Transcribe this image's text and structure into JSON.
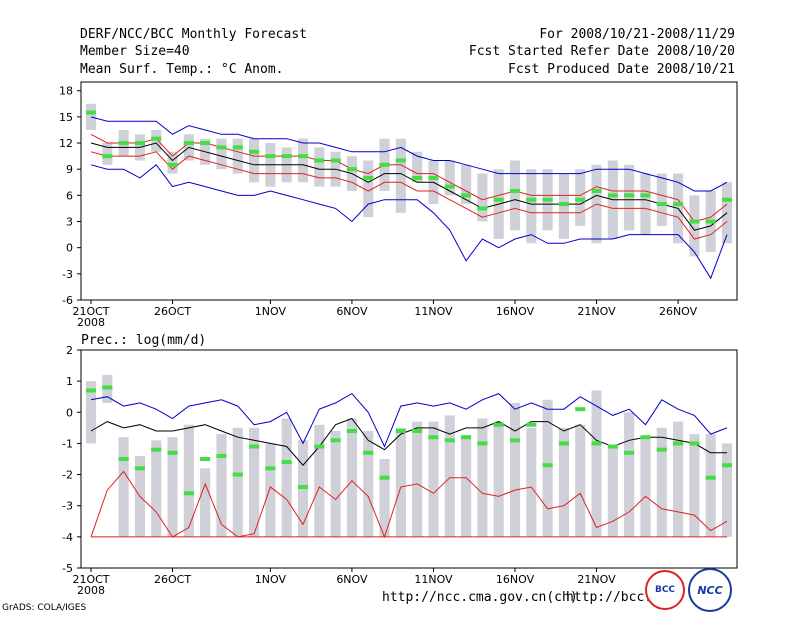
{
  "header": {
    "title": "DERF/NCC/BCC Monthly Forecast",
    "member": "Member Size=40",
    "variable": "Mean Surf. Temp.: °C Anom.",
    "period": "For 2008/10/21-2008/11/29",
    "started": "Fcst Started Refer Date 2008/10/20",
    "produced": "Fcst Produced Date 2008/10/21"
  },
  "footer": {
    "url1": "http://ncc.cma.gov.cn(ch)",
    "url2": "http://bcc.",
    "credit": "GrADS: COLA/IGES",
    "logo1": "BCC",
    "logo2": "NCC"
  },
  "colors": {
    "bar": "#d0d0d8",
    "median": "#44dd44",
    "mean": "#000000",
    "inner": "#dd2222",
    "outer": "#0000cc",
    "axis": "#000000"
  },
  "chart_data": [
    {
      "type": "box-plume",
      "title": "Mean Surf. Temp.: °C Anom.",
      "ylim": [
        -6,
        19
      ],
      "yticks": [
        -6,
        -3,
        0,
        3,
        6,
        9,
        12,
        15,
        18
      ],
      "xticks": [
        {
          "day": 1,
          "label": "21OCT"
        },
        {
          "day": 6,
          "label": "26OCT"
        },
        {
          "day": 12,
          "label": "1NOV"
        },
        {
          "day": 17,
          "label": "6NOV"
        },
        {
          "day": 22,
          "label": "11NOV"
        },
        {
          "day": 27,
          "label": "16NOV"
        },
        {
          "day": 32,
          "label": "21NOV"
        },
        {
          "day": 37,
          "label": "26NOV"
        }
      ],
      "year_label": "2008",
      "bar_low": [
        13.5,
        9.5,
        10.5,
        10,
        11,
        8.5,
        10,
        9.5,
        9,
        8.5,
        7.5,
        7,
        7.5,
        7.5,
        7,
        7,
        6.5,
        3.5,
        6.5,
        4,
        7.5,
        5,
        6,
        5,
        3,
        1,
        2,
        0.5,
        2,
        1,
        2.5,
        0.5,
        1,
        2,
        1.5,
        2.5,
        0.5,
        -1,
        -0.5,
        0.5
      ],
      "bar_high": [
        16.5,
        12,
        13.5,
        13,
        13.5,
        11,
        13,
        12.5,
        12.5,
        12.5,
        12.5,
        12,
        11.5,
        12.5,
        11.5,
        11,
        10.5,
        10,
        12.5,
        12.5,
        11,
        10,
        10,
        9.5,
        8.5,
        9,
        10,
        9,
        9,
        8.5,
        9,
        9.5,
        10,
        9.5,
        8.5,
        8.5,
        8.5,
        6,
        6.5,
        7.5
      ],
      "median": [
        15.5,
        10.5,
        12,
        12,
        12.5,
        9.5,
        12,
        12,
        11.5,
        11.5,
        11,
        10.5,
        10.5,
        10.5,
        10,
        10,
        9,
        8,
        9.5,
        10,
        8,
        8,
        7,
        6,
        4.5,
        5.5,
        6.5,
        5.5,
        5.5,
        5,
        5.5,
        6.5,
        6,
        6,
        6,
        5,
        5,
        3,
        3,
        5.5
      ],
      "mean": [
        12,
        11.5,
        11.5,
        11.5,
        12,
        10,
        11.5,
        11,
        10.5,
        10,
        9.5,
        9.5,
        9.5,
        9.5,
        9,
        9,
        8.5,
        7.5,
        8.5,
        8.5,
        7.5,
        7.5,
        6.5,
        5.5,
        4.5,
        5,
        5.5,
        5,
        5,
        5,
        5,
        6,
        5.5,
        5.5,
        5.5,
        5,
        4.5,
        2,
        2.5,
        4
      ],
      "inner_upper": [
        13,
        12,
        12,
        12,
        12.5,
        10.5,
        12,
        12,
        11.5,
        11,
        10.5,
        10.5,
        10.5,
        10.5,
        10,
        10,
        9,
        8.5,
        9.5,
        9.5,
        8.5,
        8.5,
        7.5,
        6.5,
        5.5,
        6,
        6.5,
        6,
        6,
        6,
        6,
        7,
        6.5,
        6.5,
        6.5,
        6,
        5.5,
        3,
        3.5,
        5
      ],
      "inner_lower": [
        11,
        10.5,
        10.5,
        10.5,
        11,
        9,
        10.5,
        10,
        9.5,
        9,
        8.5,
        8.5,
        8.5,
        8.5,
        8,
        8,
        7.5,
        6.5,
        7.5,
        7.5,
        6.5,
        6.5,
        5.5,
        4.5,
        3.5,
        4,
        4.5,
        4,
        4,
        4,
        4,
        5,
        4.5,
        4.5,
        4.5,
        4,
        3.5,
        1,
        1.5,
        3
      ],
      "outer_upper": [
        15,
        14.5,
        14.5,
        14.5,
        14.5,
        13,
        14,
        13.5,
        13,
        13,
        12.5,
        12.5,
        12.5,
        12,
        12,
        11.5,
        11,
        11,
        11,
        11.5,
        10.5,
        10,
        10,
        9.5,
        9,
        8.5,
        8.5,
        8.5,
        8.5,
        8.5,
        8.5,
        9,
        9,
        9,
        8.5,
        8,
        7.5,
        6.5,
        6.5,
        7.5
      ],
      "outer_lower": [
        9.5,
        9,
        9,
        8,
        9.5,
        7,
        7.5,
        7,
        6.5,
        6,
        6,
        6.5,
        6,
        5.5,
        5,
        4.5,
        3,
        5,
        5.5,
        5.5,
        5.5,
        4,
        2,
        -1.5,
        1,
        0,
        1,
        1.5,
        0.5,
        0.5,
        1,
        1,
        1,
        1.5,
        1.5,
        1.5,
        1.5,
        -0.5,
        -3.5,
        1.5
      ]
    },
    {
      "type": "box-plume",
      "title": "Prec.: log(mm/d)",
      "ylim": [
        -5,
        2
      ],
      "yticks": [
        -5,
        -4,
        -3,
        -2,
        -1,
        0,
        1,
        2
      ],
      "xticks": [
        {
          "day": 1,
          "label": "21OCT"
        },
        {
          "day": 6,
          "label": "26OCT"
        },
        {
          "day": 12,
          "label": "1NOV"
        },
        {
          "day": 17,
          "label": "6NOV"
        },
        {
          "day": 22,
          "label": "11NOV"
        },
        {
          "day": 27,
          "label": "16NOV"
        },
        {
          "day": 32,
          "label": "21NOV"
        }
      ],
      "year_label": "2008",
      "baseline": -4,
      "bar_low": [
        -1,
        0.3,
        -4,
        -4,
        -4,
        -4,
        -4,
        -4,
        -4,
        -4,
        -4,
        -4,
        -4,
        -4,
        -4,
        -4,
        -4,
        -4,
        -4,
        -4,
        -4,
        -4,
        -4,
        -4,
        -4,
        -4,
        -4,
        -4,
        -4,
        -4,
        -4,
        -4,
        -4,
        -4,
        -4,
        -4,
        -4,
        -4,
        -4,
        -4
      ],
      "bar_high": [
        1,
        1.2,
        -0.8,
        -1.4,
        -0.9,
        -0.8,
        -0.4,
        -1.8,
        -0.7,
        -0.5,
        -0.5,
        -1,
        -0.2,
        -0.9,
        -0.4,
        -0.6,
        -0.2,
        -0.6,
        -1.5,
        -0.5,
        -0.3,
        -0.3,
        -0.1,
        -0.8,
        -0.2,
        -0.3,
        0.3,
        -0.5,
        0.4,
        -0.5,
        -0.4,
        0.7,
        -1.1,
        0,
        -0.8,
        -0.5,
        -0.3,
        -0.7,
        -0.7,
        -1
      ],
      "median": [
        0.7,
        0.8,
        -1.5,
        -1.8,
        -1.2,
        -1.3,
        -2.6,
        -1.5,
        -1.4,
        -2,
        -1.1,
        -1.8,
        -1.6,
        -2.4,
        -1.1,
        -0.9,
        -0.6,
        -1.3,
        -2.1,
        -0.6,
        -0.6,
        -0.8,
        -0.9,
        -0.8,
        -1,
        -0.4,
        -0.9,
        -0.4,
        -1.7,
        -1,
        0.1,
        -1,
        -1.1,
        -1.3,
        -0.8,
        -1.2,
        -1,
        -1,
        -2.1,
        -1.7
      ],
      "mean": [
        -0.6,
        -0.3,
        -0.5,
        -0.4,
        -0.6,
        -0.6,
        -0.5,
        -0.4,
        -0.6,
        -0.8,
        -0.9,
        -1,
        -1.1,
        -1.7,
        -1.1,
        -0.4,
        -0.2,
        -0.9,
        -1.2,
        -0.7,
        -0.5,
        -0.5,
        -0.7,
        -0.5,
        -0.5,
        -0.3,
        -0.6,
        -0.3,
        -0.3,
        -0.6,
        -0.4,
        -0.9,
        -1.1,
        -0.9,
        -0.8,
        -0.8,
        -0.9,
        -1,
        -1.3,
        -1.3
      ],
      "inner_line": [
        -4,
        -2.5,
        -1.9,
        -2.7,
        -3.2,
        -4,
        -3.7,
        -2.3,
        -3.6,
        -4,
        -3.9,
        -2.4,
        -2.8,
        -3.6,
        -2.4,
        -2.8,
        -2.2,
        -2.7,
        -4,
        -2.4,
        -2.3,
        -2.6,
        -2.1,
        -2.1,
        -2.6,
        -2.7,
        -2.5,
        -2.4,
        -3.1,
        -3,
        -2.6,
        -3.7,
        -3.5,
        -3.2,
        -2.7,
        -3.1,
        -3.2,
        -3.3,
        -3.8,
        -3.5
      ],
      "outer_line": [
        0.4,
        0.5,
        0.2,
        0.3,
        0.1,
        -0.2,
        0.2,
        0.3,
        0.4,
        0.2,
        -0.4,
        -0.3,
        0,
        -1,
        0.1,
        0.3,
        0.6,
        0,
        -1.1,
        0.2,
        0.3,
        0.2,
        0.3,
        0.1,
        0.4,
        0.6,
        0.1,
        0.3,
        0.1,
        0.1,
        0.5,
        0.2,
        -0.1,
        0.1,
        -0.4,
        0.4,
        0.1,
        -0.1,
        -0.7,
        -0.5
      ]
    }
  ]
}
